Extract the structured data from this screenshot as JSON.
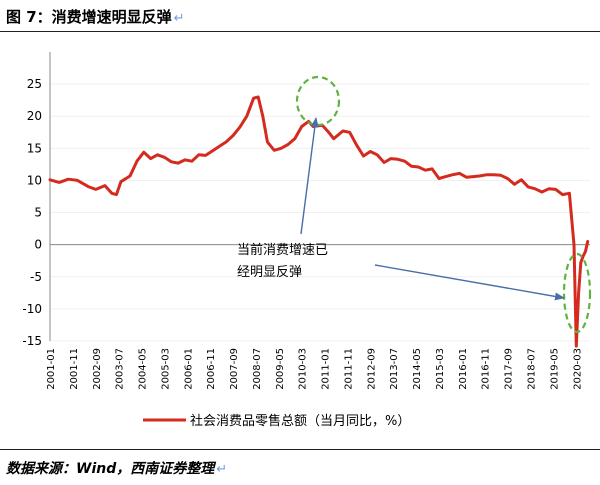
{
  "title": "图 7：消费增速明显反弹",
  "source_note": "数据来源：Wind，西南证券整理",
  "return_glyph": "↵",
  "chart_data": {
    "type": "line",
    "x_tick_labels": [
      "2001-01",
      "2001-11",
      "2002-09",
      "2003-07",
      "2004-05",
      "2005-03",
      "2006-01",
      "2006-11",
      "2007-09",
      "2008-07",
      "2009-05",
      "2010-03",
      "2011-01",
      "2011-11",
      "2012-09",
      "2013-07",
      "2014-05",
      "2015-03",
      "2016-01",
      "2016-11",
      "2017-09",
      "2018-07",
      "2019-05",
      "2020-03"
    ],
    "y_ticks": [
      25,
      20,
      15,
      10,
      5,
      0,
      -5,
      -10,
      -15
    ],
    "ylim": [
      -15,
      30
    ],
    "series": [
      {
        "name": "社会消费品零售总额（当月同比，%）",
        "color": "#d42a20",
        "points": [
          [
            "2001-01",
            10.1
          ],
          [
            "2001-05",
            9.7
          ],
          [
            "2001-09",
            10.2
          ],
          [
            "2002-01",
            10.0
          ],
          [
            "2002-06",
            9.0
          ],
          [
            "2002-09",
            8.6
          ],
          [
            "2003-01",
            9.2
          ],
          [
            "2003-04",
            8.0
          ],
          [
            "2003-06",
            7.8
          ],
          [
            "2003-08",
            9.8
          ],
          [
            "2003-12",
            10.7
          ],
          [
            "2004-03",
            13.0
          ],
          [
            "2004-06",
            14.4
          ],
          [
            "2004-09",
            13.4
          ],
          [
            "2004-12",
            14.0
          ],
          [
            "2005-03",
            13.6
          ],
          [
            "2005-06",
            12.9
          ],
          [
            "2005-09",
            12.7
          ],
          [
            "2005-12",
            13.2
          ],
          [
            "2006-03",
            13.0
          ],
          [
            "2006-06",
            14.0
          ],
          [
            "2006-09",
            13.9
          ],
          [
            "2006-12",
            14.6
          ],
          [
            "2007-03",
            15.3
          ],
          [
            "2007-06",
            16.0
          ],
          [
            "2007-09",
            17.0
          ],
          [
            "2007-12",
            18.3
          ],
          [
            "2008-03",
            20.0
          ],
          [
            "2008-06",
            22.8
          ],
          [
            "2008-08",
            23.0
          ],
          [
            "2008-10",
            20.0
          ],
          [
            "2008-12",
            16.0
          ],
          [
            "2009-03",
            14.7
          ],
          [
            "2009-06",
            15.0
          ],
          [
            "2009-09",
            15.6
          ],
          [
            "2009-12",
            16.5
          ],
          [
            "2010-03",
            18.4
          ],
          [
            "2010-06",
            19.2
          ],
          [
            "2010-08",
            18.4
          ],
          [
            "2010-12",
            18.6
          ],
          [
            "2011-03",
            17.4
          ],
          [
            "2011-05",
            16.5
          ],
          [
            "2011-09",
            17.7
          ],
          [
            "2011-12",
            17.5
          ],
          [
            "2012-03",
            15.5
          ],
          [
            "2012-06",
            13.8
          ],
          [
            "2012-09",
            14.5
          ],
          [
            "2012-12",
            14.0
          ],
          [
            "2013-03",
            12.8
          ],
          [
            "2013-06",
            13.4
          ],
          [
            "2013-09",
            13.3
          ],
          [
            "2013-12",
            13.0
          ],
          [
            "2014-03",
            12.2
          ],
          [
            "2014-06",
            12.1
          ],
          [
            "2014-09",
            11.6
          ],
          [
            "2014-12",
            11.8
          ],
          [
            "2015-03",
            10.3
          ],
          [
            "2015-06",
            10.6
          ],
          [
            "2015-09",
            10.9
          ],
          [
            "2015-12",
            11.1
          ],
          [
            "2016-03",
            10.5
          ],
          [
            "2016-06",
            10.6
          ],
          [
            "2016-09",
            10.7
          ],
          [
            "2016-12",
            10.9
          ],
          [
            "2017-03",
            10.9
          ],
          [
            "2017-06",
            10.8
          ],
          [
            "2017-09",
            10.3
          ],
          [
            "2017-12",
            9.4
          ],
          [
            "2018-03",
            10.1
          ],
          [
            "2018-06",
            9.0
          ],
          [
            "2018-09",
            8.7
          ],
          [
            "2018-12",
            8.2
          ],
          [
            "2019-03",
            8.7
          ],
          [
            "2019-06",
            8.6
          ],
          [
            "2019-09",
            7.8
          ],
          [
            "2019-12",
            8.0
          ],
          [
            "2020-02",
            0.0
          ],
          [
            "2020-03",
            -15.8
          ],
          [
            "2020-04",
            -7.5
          ],
          [
            "2020-05",
            -2.8
          ],
          [
            "2020-06",
            -1.8
          ],
          [
            "2020-07",
            -1.1
          ],
          [
            "2020-08",
            0.5
          ]
        ]
      }
    ],
    "annotation_text": [
      "当前消费增速已",
      "经明显反弹"
    ],
    "legend_position": "bottom"
  }
}
